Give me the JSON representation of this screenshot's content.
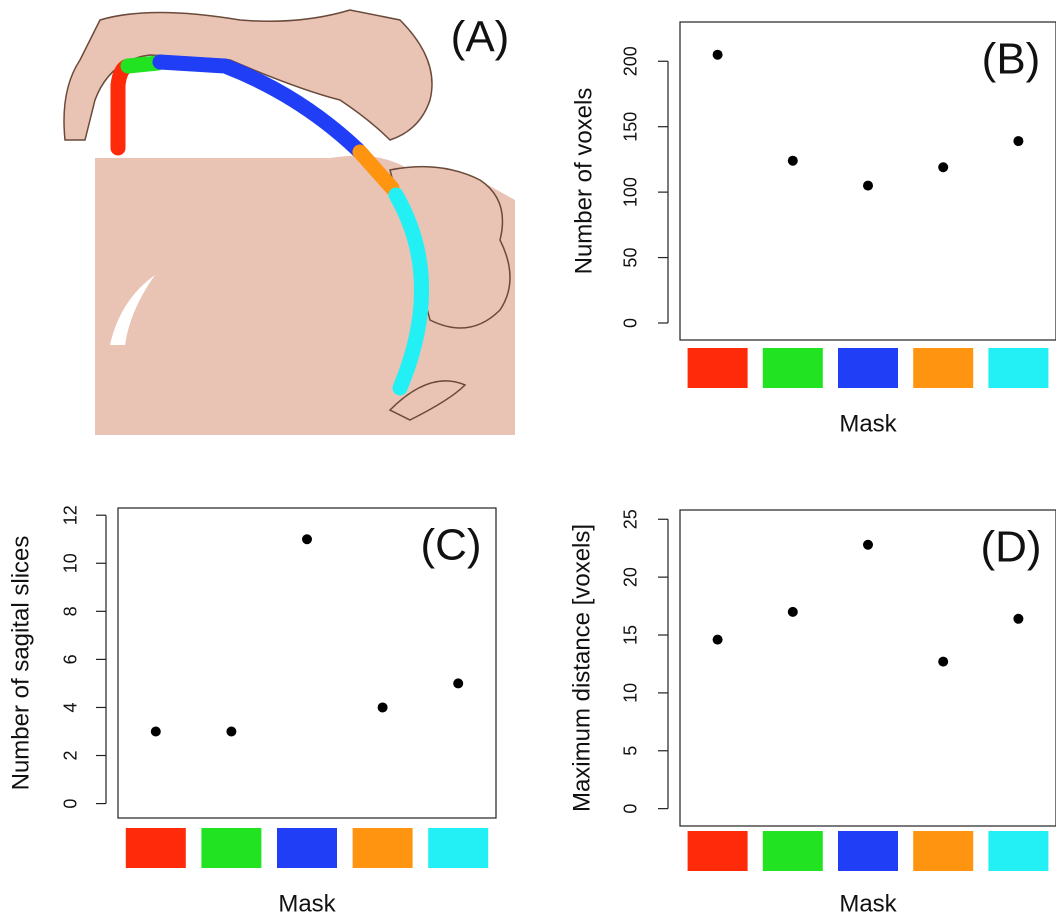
{
  "panel_a": {
    "label": "(A)"
  },
  "chart_data": [
    {
      "type": "scatter",
      "panel_label": "(B)",
      "ylabel": "Number of voxels",
      "xlabel": "Mask",
      "categories": [
        null,
        null,
        null,
        null,
        null
      ],
      "colors": [
        "#ff2a0a",
        "#22e322",
        "#1f3ef5",
        "#ff9410",
        "#22f0f5"
      ],
      "values": [
        205,
        124,
        105,
        119,
        139
      ],
      "point_color": "#000000",
      "ylim": [
        -13,
        230
      ],
      "yticks": [
        0,
        50,
        100,
        150,
        200
      ]
    },
    {
      "type": "scatter",
      "panel_label": "(C)",
      "ylabel": "Number of sagital slices",
      "xlabel": "Mask",
      "categories": [
        null,
        null,
        null,
        null,
        null
      ],
      "colors": [
        "#ff2a0a",
        "#22e322",
        "#1f3ef5",
        "#ff9410",
        "#22f0f5"
      ],
      "values": [
        3,
        3,
        11,
        4,
        5
      ],
      "point_color": "#000000",
      "ylim": [
        -0.6,
        12.3
      ],
      "yticks": [
        0,
        2,
        4,
        6,
        8,
        10,
        12
      ]
    },
    {
      "type": "scatter",
      "panel_label": "(D)",
      "ylabel": "Maximum distance [voxels]",
      "xlabel": "Mask",
      "categories": [
        null,
        null,
        null,
        null,
        null
      ],
      "colors": [
        "#ff2a0a",
        "#22e322",
        "#1f3ef5",
        "#ff9410",
        "#22f0f5"
      ],
      "values": [
        14.6,
        17,
        22.8,
        12.7,
        16.4
      ],
      "point_color": "#000000",
      "ylim": [
        -1.5,
        25.8
      ],
      "yticks": [
        0,
        5,
        10,
        15,
        20,
        25
      ]
    }
  ]
}
